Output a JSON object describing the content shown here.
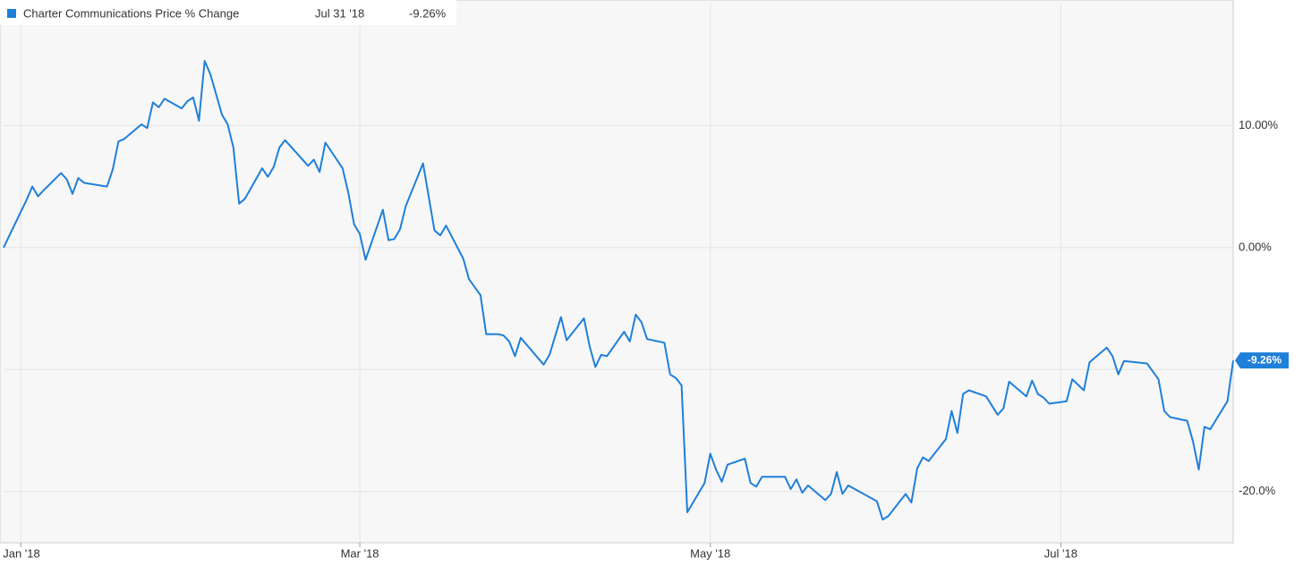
{
  "chart_data": {
    "type": "line",
    "title": "Charter Communications Price % Change",
    "current_date": "Jul 31 '18",
    "current_label": "-9.26%",
    "xlim": [
      "2017-12-29",
      "2018-07-31"
    ],
    "ylim": [
      -24.2,
      20
    ],
    "xticks": [
      {
        "value": "2018-01-01",
        "label": "Jan '18"
      },
      {
        "value": "2018-03-01",
        "label": "Mar '18"
      },
      {
        "value": "2018-05-01",
        "label": "May '18"
      },
      {
        "value": "2018-07-01",
        "label": "Jul '18"
      }
    ],
    "yticks": [
      {
        "value": 10,
        "label": "10.00%"
      },
      {
        "value": 0,
        "label": "0.00%"
      },
      {
        "value": -10,
        "label": null
      },
      {
        "value": -20,
        "label": "-20.0%"
      }
    ],
    "grid": true,
    "x": [
      "2017-12-29",
      "2018-01-02",
      "2018-01-03",
      "2018-01-04",
      "2018-01-05",
      "2018-01-08",
      "2018-01-09",
      "2018-01-10",
      "2018-01-11",
      "2018-01-12",
      "2018-01-16",
      "2018-01-17",
      "2018-01-18",
      "2018-01-19",
      "2018-01-22",
      "2018-01-23",
      "2018-01-24",
      "2018-01-25",
      "2018-01-26",
      "2018-01-29",
      "2018-01-30",
      "2018-01-31",
      "2018-02-01",
      "2018-02-02",
      "2018-02-03",
      "2018-02-05",
      "2018-02-06",
      "2018-02-07",
      "2018-02-08",
      "2018-02-09",
      "2018-02-12",
      "2018-02-13",
      "2018-02-14",
      "2018-02-15",
      "2018-02-16",
      "2018-02-20",
      "2018-02-21",
      "2018-02-22",
      "2018-02-23",
      "2018-02-26",
      "2018-02-27",
      "2018-02-28",
      "2018-03-01",
      "2018-03-02",
      "2018-03-05",
      "2018-03-06",
      "2018-03-07",
      "2018-03-08",
      "2018-03-09",
      "2018-03-12",
      "2018-03-14",
      "2018-03-15",
      "2018-03-16",
      "2018-03-19",
      "2018-03-20",
      "2018-03-22",
      "2018-03-23",
      "2018-03-25",
      "2018-03-26",
      "2018-03-27",
      "2018-03-28",
      "2018-03-29",
      "2018-04-02",
      "2018-04-03",
      "2018-04-05",
      "2018-04-06",
      "2018-04-09",
      "2018-04-10",
      "2018-04-11",
      "2018-04-12",
      "2018-04-13",
      "2018-04-16",
      "2018-04-17",
      "2018-04-18",
      "2018-04-19",
      "2018-04-20",
      "2018-04-23",
      "2018-04-24",
      "2018-04-25",
      "2018-04-26",
      "2018-04-27",
      "2018-04-30",
      "2018-05-01",
      "2018-05-02",
      "2018-05-03",
      "2018-05-04",
      "2018-05-07",
      "2018-05-08",
      "2018-05-09",
      "2018-05-10",
      "2018-05-14",
      "2018-05-15",
      "2018-05-16",
      "2018-05-17",
      "2018-05-18",
      "2018-05-21",
      "2018-05-22",
      "2018-05-23",
      "2018-05-24",
      "2018-05-25",
      "2018-05-30",
      "2018-05-31",
      "2018-06-01",
      "2018-06-04",
      "2018-06-05",
      "2018-06-06",
      "2018-06-07",
      "2018-06-08",
      "2018-06-11",
      "2018-06-12",
      "2018-06-13",
      "2018-06-14",
      "2018-06-15",
      "2018-06-18",
      "2018-06-20",
      "2018-06-21",
      "2018-06-22",
      "2018-06-25",
      "2018-06-26",
      "2018-06-27",
      "2018-06-28",
      "2018-06-29",
      "2018-07-02",
      "2018-07-03",
      "2018-07-05",
      "2018-07-06",
      "2018-07-09",
      "2018-07-10",
      "2018-07-11",
      "2018-07-12",
      "2018-07-16",
      "2018-07-18",
      "2018-07-19",
      "2018-07-20",
      "2018-07-23",
      "2018-07-24",
      "2018-07-25",
      "2018-07-26",
      "2018-07-27",
      "2018-07-30",
      "2018-07-31"
    ],
    "series": [
      {
        "name": "Charter Communications Price % Change",
        "color": "#1f7fd9",
        "values": [
          0.0,
          3.9,
          5.0,
          4.2,
          4.7,
          6.1,
          5.6,
          4.4,
          5.7,
          5.3,
          5.0,
          6.4,
          8.7,
          8.9,
          10.1,
          9.8,
          11.9,
          11.5,
          12.2,
          11.4,
          12.0,
          12.3,
          10.4,
          15.3,
          14.2,
          10.9,
          10.1,
          8.2,
          3.6,
          4.0,
          6.5,
          5.8,
          6.6,
          8.2,
          8.8,
          6.7,
          7.2,
          6.2,
          8.6,
          6.5,
          4.5,
          1.9,
          1.1,
          -1.0,
          3.1,
          0.6,
          0.7,
          1.5,
          3.4,
          6.9,
          1.4,
          1.0,
          1.8,
          -0.9,
          -2.6,
          -3.9,
          -7.1,
          -7.1,
          -7.2,
          -7.7,
          -8.9,
          -7.4,
          -9.6,
          -8.8,
          -5.7,
          -7.6,
          -5.8,
          -8.1,
          -9.8,
          -8.8,
          -8.9,
          -6.9,
          -7.7,
          -5.5,
          -6.1,
          -7.5,
          -7.8,
          -10.4,
          -10.7,
          -11.3,
          -21.7,
          -19.3,
          -16.9,
          -18.2,
          -19.2,
          -17.8,
          -17.3,
          -19.3,
          -19.6,
          -18.8,
          -18.8,
          -19.8,
          -19.0,
          -20.1,
          -19.5,
          -20.7,
          -20.2,
          -18.4,
          -20.2,
          -19.5,
          -20.8,
          -22.3,
          -22.0,
          -20.2,
          -20.9,
          -18.1,
          -17.2,
          -17.5,
          -15.7,
          -13.4,
          -15.2,
          -12.0,
          -11.7,
          -12.2,
          -13.7,
          -13.2,
          -11.0,
          -12.2,
          -10.9,
          -12.0,
          -12.3,
          -12.8,
          -12.6,
          -10.8,
          -11.7,
          -9.4,
          -8.2,
          -8.9,
          -10.4,
          -9.3,
          -9.5,
          -10.8,
          -13.4,
          -13.9,
          -14.2,
          -15.9,
          -18.2,
          -14.7,
          -14.9,
          -12.6,
          -9.26
        ]
      }
    ]
  }
}
